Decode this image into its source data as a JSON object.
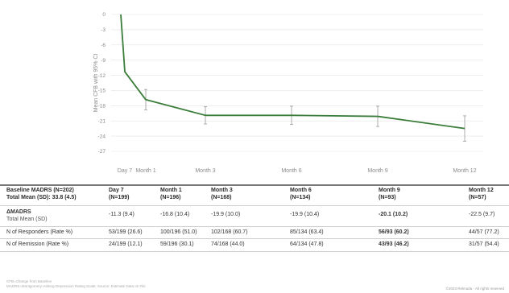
{
  "chart_data": {
    "type": "line",
    "ylabel": "Mean CFB with 95% CI",
    "xlabel": "",
    "ylim": [
      -27,
      0
    ],
    "yticks": [
      0,
      -3,
      -6,
      -9,
      -12,
      -15,
      -18,
      -21,
      -24,
      -27
    ],
    "grid": true,
    "categories": [
      "Day 7",
      "Month 1",
      "Month 3",
      "Month 6",
      "Month 9",
      "Month 12"
    ],
    "series": [
      {
        "color": "#3a7d3a",
        "points": [
          {
            "x": "Baseline",
            "y": 0,
            "ci": null
          },
          {
            "x": "Day 7",
            "y": -11.3,
            "ci": null
          },
          {
            "x": "Month 1",
            "y": -16.8,
            "ci": [
              -18.8,
              -14.8
            ]
          },
          {
            "x": "Month 3",
            "y": -19.9,
            "ci": [
              -21.6,
              -18.2
            ]
          },
          {
            "x": "Month 6",
            "y": -19.9,
            "ci": [
              -21.7,
              -18.1
            ]
          },
          {
            "x": "Month 9",
            "y": -20.1,
            "ci": [
              -22.1,
              -18.1
            ]
          },
          {
            "x": "Month 12",
            "y": -22.5,
            "ci": [
              -25.0,
              -20.0
            ]
          }
        ]
      }
    ]
  },
  "table": {
    "baseline_title_1": "Baseline MADRS (N=202)",
    "baseline_title_2": "Total Mean (SD): 33.8 (4.5)",
    "columns": [
      {
        "label": "Day 7",
        "n": "(N=199)"
      },
      {
        "label": "Month 1",
        "n": "(N=196)"
      },
      {
        "label": "Month 3",
        "n": "(N=168)"
      },
      {
        "label": "Month 6",
        "n": "(N=134)"
      },
      {
        "label": "Month 9",
        "n": "(N=93)"
      },
      {
        "label": "Month 12",
        "n": "(N=57)"
      }
    ],
    "rows": [
      {
        "label_1": "ΔMADRS",
        "label_2": "Total Mean (SD)",
        "values": [
          "-11.3 (9.4)",
          "-16.8 (10.4)",
          "-19.9 (10.0)",
          "-19.9 (10.4)",
          "-20.1 (10.2)",
          "-22.5 (9.7)"
        ]
      },
      {
        "label_1": "N of Responders (Rate %)",
        "values": [
          "53/199 (26.6)",
          "100/196 (51.0)",
          "102/168 (60.7)",
          "85/134 (63.4)",
          "56/93 (60.2)",
          "44/57 (77.2)"
        ]
      },
      {
        "label_1": "N of Remission (Rate %)",
        "values": [
          "24/199 (12.1)",
          "59/196 (30.1)",
          "74/168 (44.0)",
          "64/134 (47.8)",
          "43/93 (46.2)",
          "31/57 (54.4)"
        ]
      }
    ]
  },
  "footer": {
    "note_1": "CFB=Change from Baseline",
    "note_2": "MADRS=Montgomery-Asberg Depression Rating Scale; Source: Estimate Data on File",
    "copyright": "©2023 Relmada - All rights reserved"
  }
}
